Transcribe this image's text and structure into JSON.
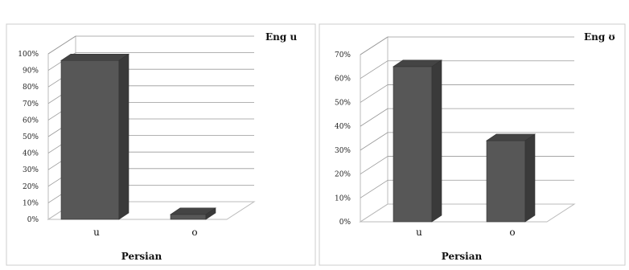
{
  "chart_data": [
    {
      "type": "bar",
      "categories": [
        "u",
        "o"
      ],
      "series": [
        {
          "values": [
            96,
            3
          ]
        }
      ],
      "ylim": [
        0,
        100
      ],
      "yticks": [
        "0%",
        "10%",
        "20%",
        "30%",
        "40%",
        "50%",
        "60%",
        "70%",
        "80%",
        "90%",
        "100%"
      ],
      "xlabel": "Persian",
      "legend_label": "Eng  u",
      "legend_position": "top-right",
      "grid": true,
      "bar_color": "#555555"
    },
    {
      "type": "bar",
      "categories": [
        "u",
        "o"
      ],
      "series": [
        {
          "values": [
            65,
            34
          ]
        }
      ],
      "ylim": [
        0,
        70
      ],
      "yticks": [
        "0%",
        "10%",
        "20%",
        "30%",
        "40%",
        "50%",
        "60%",
        "70%"
      ],
      "xlabel": "Persian",
      "legend_label": "Eng  ʊ",
      "legend_position": "top-right",
      "grid": true,
      "bar_color": "#555555"
    }
  ]
}
